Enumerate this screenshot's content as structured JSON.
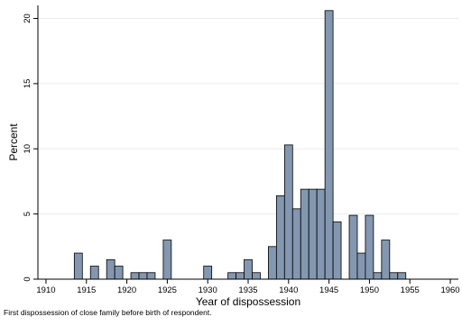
{
  "chart_data": {
    "type": "bar",
    "xlabel": "Year of dispossession",
    "ylabel": "Percent",
    "xlim": [
      1909,
      1961
    ],
    "ylim": [
      0,
      21
    ],
    "x_ticks": [
      "1910",
      "1915",
      "1920",
      "1925",
      "1930",
      "1935",
      "1940",
      "1945",
      "1950",
      "1955",
      "1960"
    ],
    "y_ticks": [
      "0",
      "5",
      "10",
      "15",
      "20"
    ],
    "bin_width": 1,
    "bar_color": "#8397b0",
    "bars": [
      {
        "x": 1914,
        "value": 2.0
      },
      {
        "x": 1916,
        "value": 1.0
      },
      {
        "x": 1918,
        "value": 1.5
      },
      {
        "x": 1919,
        "value": 1.0
      },
      {
        "x": 1921,
        "value": 0.5
      },
      {
        "x": 1922,
        "value": 0.5
      },
      {
        "x": 1923,
        "value": 0.5
      },
      {
        "x": 1925,
        "value": 3.0
      },
      {
        "x": 1930,
        "value": 1.0
      },
      {
        "x": 1933,
        "value": 0.5
      },
      {
        "x": 1934,
        "value": 0.5
      },
      {
        "x": 1935,
        "value": 1.5
      },
      {
        "x": 1936,
        "value": 0.5
      },
      {
        "x": 1938,
        "value": 2.5
      },
      {
        "x": 1939,
        "value": 6.4
      },
      {
        "x": 1940,
        "value": 10.3
      },
      {
        "x": 1941,
        "value": 5.4
      },
      {
        "x": 1942,
        "value": 6.9
      },
      {
        "x": 1943,
        "value": 6.9
      },
      {
        "x": 1944,
        "value": 6.9
      },
      {
        "x": 1945,
        "value": 20.6
      },
      {
        "x": 1946,
        "value": 4.4
      },
      {
        "x": 1948,
        "value": 4.9
      },
      {
        "x": 1949,
        "value": 2.0
      },
      {
        "x": 1950,
        "value": 4.9
      },
      {
        "x": 1951,
        "value": 0.5
      },
      {
        "x": 1952,
        "value": 3.0
      },
      {
        "x": 1953,
        "value": 0.5
      },
      {
        "x": 1954,
        "value": 0.5
      }
    ]
  },
  "note": "First dispossession of close family before birth of respondent."
}
